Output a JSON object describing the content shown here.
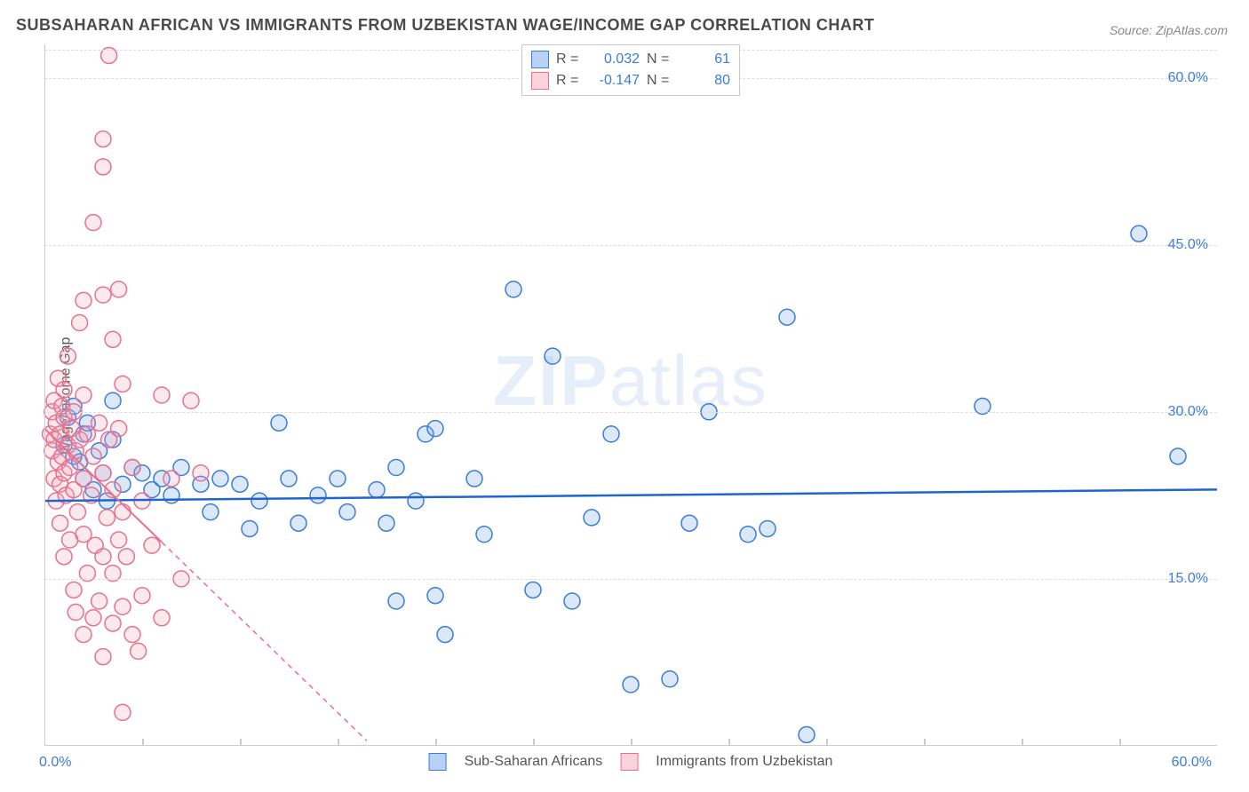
{
  "title": "SUBSAHARAN AFRICAN VS IMMIGRANTS FROM UZBEKISTAN WAGE/INCOME GAP CORRELATION CHART",
  "source": "Source: ZipAtlas.com",
  "y_axis_label": "Wage/Income Gap",
  "watermark_a": "ZIP",
  "watermark_b": "atlas",
  "chart": {
    "type": "scatter",
    "background_color": "#ffffff",
    "grid_color": "#dddddd",
    "axis_color": "#cccccc",
    "label_color": "#3b7dd8",
    "title_color": "#4a4a4a",
    "title_fontsize": 18,
    "label_fontsize": 16,
    "xlim": [
      0,
      60
    ],
    "ylim": [
      0,
      63
    ],
    "y_ticks": [
      15,
      30,
      45,
      60
    ],
    "y_tick_labels": [
      "15.0%",
      "30.0%",
      "45.0%",
      "60.0%"
    ],
    "x_ticks": [
      0,
      60
    ],
    "x_tick_labels": [
      "0.0%",
      "60.0%"
    ],
    "x_minor_ticks": [
      5,
      10,
      15,
      20,
      25,
      30,
      35,
      40,
      45,
      50,
      55
    ],
    "marker_radius": 9,
    "marker_fill_opacity": 0.25,
    "marker_stroke_width": 1.5,
    "series": [
      {
        "name": "Sub-Saharan Africans",
        "color": "#6ea3e8",
        "stroke": "#3b7dd8",
        "R": "0.032",
        "N": "61",
        "trend": {
          "slope": 0.017,
          "intercept": 22.0,
          "x0": 0,
          "x1": 60,
          "color": "#1f66cc",
          "width": 2.5,
          "dash_after_x": null
        },
        "points": [
          [
            1.0,
            27.0
          ],
          [
            1.2,
            29.5
          ],
          [
            1.5,
            26.0
          ],
          [
            1.5,
            30.5
          ],
          [
            1.8,
            25.5
          ],
          [
            2.0,
            24.0
          ],
          [
            2.0,
            28.0
          ],
          [
            2.2,
            29.0
          ],
          [
            2.5,
            23.0
          ],
          [
            2.8,
            26.5
          ],
          [
            3.0,
            24.5
          ],
          [
            3.2,
            22.0
          ],
          [
            3.5,
            27.5
          ],
          [
            3.5,
            31.0
          ],
          [
            4.0,
            23.5
          ],
          [
            4.5,
            25.0
          ],
          [
            5.0,
            24.5
          ],
          [
            5.5,
            23.0
          ],
          [
            6.0,
            24.0
          ],
          [
            6.5,
            22.5
          ],
          [
            7.0,
            25.0
          ],
          [
            8.0,
            23.5
          ],
          [
            8.5,
            21.0
          ],
          [
            9.0,
            24.0
          ],
          [
            10.0,
            23.5
          ],
          [
            10.5,
            19.5
          ],
          [
            11.0,
            22.0
          ],
          [
            12.0,
            29.0
          ],
          [
            12.5,
            24.0
          ],
          [
            13.0,
            20.0
          ],
          [
            14.0,
            22.5
          ],
          [
            15.0,
            24.0
          ],
          [
            15.5,
            21.0
          ],
          [
            17.0,
            23.0
          ],
          [
            17.5,
            20.0
          ],
          [
            18.0,
            25.0
          ],
          [
            18.0,
            13.0
          ],
          [
            19.0,
            22.0
          ],
          [
            19.5,
            28.0
          ],
          [
            20.0,
            28.5
          ],
          [
            20.0,
            13.5
          ],
          [
            20.5,
            10.0
          ],
          [
            22.0,
            24.0
          ],
          [
            22.5,
            19.0
          ],
          [
            24.0,
            41.0
          ],
          [
            25.0,
            14.0
          ],
          [
            26.0,
            35.0
          ],
          [
            27.0,
            13.0
          ],
          [
            28.0,
            20.5
          ],
          [
            29.0,
            28.0
          ],
          [
            30.0,
            5.5
          ],
          [
            32.0,
            6.0
          ],
          [
            33.0,
            20.0
          ],
          [
            34.0,
            30.0
          ],
          [
            36.0,
            19.0
          ],
          [
            37.0,
            19.5
          ],
          [
            38.0,
            38.5
          ],
          [
            39.0,
            1.0
          ],
          [
            48.0,
            30.5
          ],
          [
            56.0,
            46.0
          ],
          [
            58.0,
            26.0
          ]
        ]
      },
      {
        "name": "Immigrants from Uzbekistan",
        "color": "#f4a6b8",
        "stroke": "#e8718f",
        "R": "-0.147",
        "N": "80",
        "trend": {
          "slope": -1.7,
          "intercept": 28.5,
          "x0": 0,
          "x1": 16.5,
          "color": "#e8718f",
          "width": 2,
          "dash_after_x": 6.0
        },
        "points": [
          [
            0.3,
            28.0
          ],
          [
            0.4,
            26.5
          ],
          [
            0.4,
            30.0
          ],
          [
            0.5,
            24.0
          ],
          [
            0.5,
            27.5
          ],
          [
            0.5,
            31.0
          ],
          [
            0.6,
            22.0
          ],
          [
            0.6,
            29.0
          ],
          [
            0.7,
            25.5
          ],
          [
            0.7,
            33.0
          ],
          [
            0.8,
            20.0
          ],
          [
            0.8,
            23.5
          ],
          [
            0.8,
            28.0
          ],
          [
            0.9,
            26.0
          ],
          [
            0.9,
            30.5
          ],
          [
            1.0,
            17.0
          ],
          [
            1.0,
            24.5
          ],
          [
            1.0,
            29.5
          ],
          [
            1.0,
            32.0
          ],
          [
            1.1,
            22.5
          ],
          [
            1.2,
            27.0
          ],
          [
            1.2,
            35.0
          ],
          [
            1.3,
            18.5
          ],
          [
            1.3,
            25.0
          ],
          [
            1.4,
            28.5
          ],
          [
            1.5,
            14.0
          ],
          [
            1.5,
            23.0
          ],
          [
            1.5,
            30.0
          ],
          [
            1.6,
            12.0
          ],
          [
            1.6,
            26.5
          ],
          [
            1.7,
            21.0
          ],
          [
            1.8,
            27.5
          ],
          [
            1.8,
            38.0
          ],
          [
            2.0,
            10.0
          ],
          [
            2.0,
            19.0
          ],
          [
            2.0,
            24.0
          ],
          [
            2.0,
            31.5
          ],
          [
            2.0,
            40.0
          ],
          [
            2.2,
            15.5
          ],
          [
            2.2,
            28.0
          ],
          [
            2.4,
            22.5
          ],
          [
            2.5,
            11.5
          ],
          [
            2.5,
            26.0
          ],
          [
            2.5,
            47.0
          ],
          [
            2.6,
            18.0
          ],
          [
            2.8,
            13.0
          ],
          [
            2.8,
            29.0
          ],
          [
            3.0,
            8.0
          ],
          [
            3.0,
            17.0
          ],
          [
            3.0,
            24.5
          ],
          [
            3.0,
            40.5
          ],
          [
            3.0,
            52.0
          ],
          [
            3.0,
            54.5
          ],
          [
            3.2,
            20.5
          ],
          [
            3.3,
            27.5
          ],
          [
            3.3,
            62.0
          ],
          [
            3.5,
            11.0
          ],
          [
            3.5,
            15.5
          ],
          [
            3.5,
            23.0
          ],
          [
            3.5,
            36.5
          ],
          [
            3.8,
            18.5
          ],
          [
            3.8,
            28.5
          ],
          [
            3.8,
            41.0
          ],
          [
            4.0,
            3.0
          ],
          [
            4.0,
            12.5
          ],
          [
            4.0,
            21.0
          ],
          [
            4.0,
            32.5
          ],
          [
            4.2,
            17.0
          ],
          [
            4.5,
            10.0
          ],
          [
            4.5,
            25.0
          ],
          [
            4.8,
            8.5
          ],
          [
            5.0,
            13.5
          ],
          [
            5.0,
            22.0
          ],
          [
            5.5,
            18.0
          ],
          [
            6.0,
            11.5
          ],
          [
            6.0,
            31.5
          ],
          [
            6.5,
            24.0
          ],
          [
            7.0,
            15.0
          ],
          [
            7.5,
            31.0
          ],
          [
            8.0,
            24.5
          ]
        ]
      }
    ]
  },
  "legend_top": {
    "rows": [
      {
        "swatch_fill": "#b9d1f4",
        "swatch_border": "#3b7dd8",
        "r_label": "R =",
        "r_val": "0.032",
        "n_label": "N =",
        "n_val": "61"
      },
      {
        "swatch_fill": "#fbd3dd",
        "swatch_border": "#e8718f",
        "r_label": "R =",
        "r_val": "-0.147",
        "n_label": "N =",
        "n_val": "80"
      }
    ]
  },
  "legend_bottom": {
    "items": [
      {
        "swatch_fill": "#b9d1f4",
        "swatch_border": "#3b7dd8",
        "label": "Sub-Saharan Africans"
      },
      {
        "swatch_fill": "#fbd3dd",
        "swatch_border": "#e8718f",
        "label": "Immigrants from Uzbekistan"
      }
    ]
  }
}
